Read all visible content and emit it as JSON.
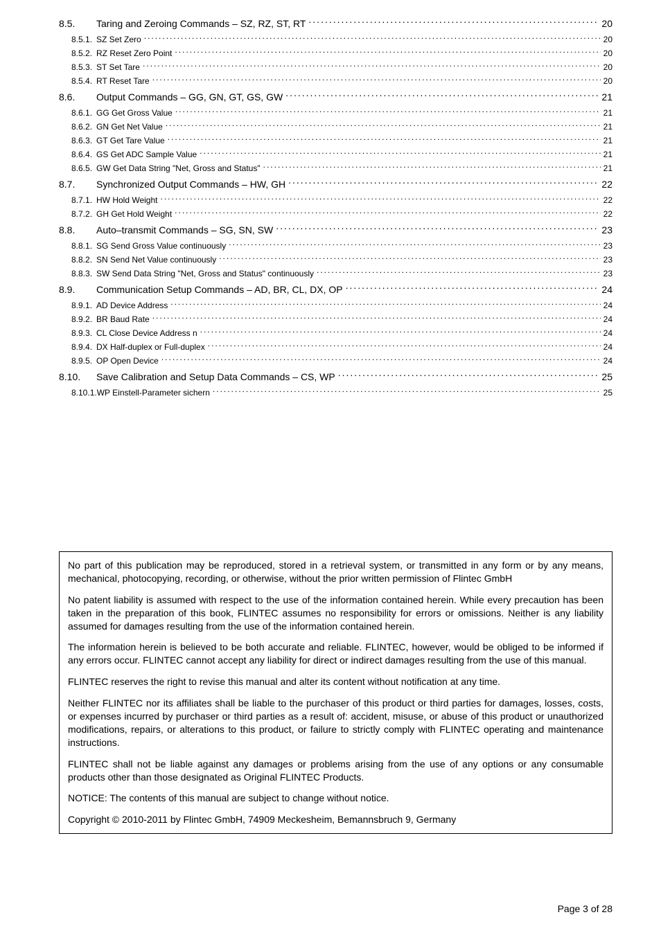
{
  "toc": [
    {
      "level": 1,
      "num": "8.5.",
      "label": "Taring and Zeroing Commands – SZ, RZ, ST, RT",
      "page": "20"
    },
    {
      "level": 2,
      "num": "8.5.1.",
      "label": "SZ  Set Zero",
      "page": "20"
    },
    {
      "level": 2,
      "num": "8.5.2.",
      "label": "RZ  Reset Zero Point",
      "page": "20"
    },
    {
      "level": 2,
      "num": "8.5.3.",
      "label": "ST  Set Tare",
      "page": "20"
    },
    {
      "level": 2,
      "num": "8.5.4.",
      "label": "RT  Reset Tare",
      "page": "20"
    },
    {
      "level": 1,
      "num": "8.6.",
      "label": "Output Commands – GG, GN, GT, GS, GW",
      "page": "21"
    },
    {
      "level": 2,
      "num": "8.6.1.",
      "label": "GG Get Gross Value",
      "page": "21"
    },
    {
      "level": 2,
      "num": "8.6.2.",
      "label": "GN Get Net Value",
      "page": "21"
    },
    {
      "level": 2,
      "num": "8.6.3.",
      "label": "GT  Get Tare Value",
      "page": "21"
    },
    {
      "level": 2,
      "num": "8.6.4.",
      "label": "GS Get ADC Sample Value",
      "page": "21"
    },
    {
      "level": 2,
      "num": "8.6.5.",
      "label": "GW Get Data String \"Net, Gross and Status\"",
      "page": "21"
    },
    {
      "level": 1,
      "num": "8.7.",
      "label": "Synchronized Output Commands – HW, GH",
      "page": "22"
    },
    {
      "level": 2,
      "num": "8.7.1.",
      "label": "HW Hold Weight",
      "page": "22"
    },
    {
      "level": 2,
      "num": "8.7.2.",
      "label": "GH Get Hold Weight",
      "page": "22"
    },
    {
      "level": 1,
      "num": "8.8.",
      "label": "Auto–transmit Commands – SG, SN, SW",
      "page": "23"
    },
    {
      "level": 2,
      "num": "8.8.1.",
      "label": "SG Send Gross Value continuously",
      "page": "23"
    },
    {
      "level": 2,
      "num": "8.8.2.",
      "label": "SN  Send Net Value continuously",
      "page": "23"
    },
    {
      "level": 2,
      "num": "8.8.3.",
      "label": "SW Send Data String \"Net, Gross and Status\" continuously",
      "page": "23"
    },
    {
      "level": 1,
      "num": "8.9.",
      "label": "Communication Setup Commands – AD, BR, CL, DX, OP",
      "page": "24"
    },
    {
      "level": 2,
      "num": "8.9.1.",
      "label": "AD Device Address",
      "page": "24"
    },
    {
      "level": 2,
      "num": "8.9.2.",
      "label": "BR Baud Rate",
      "page": "24"
    },
    {
      "level": 2,
      "num": "8.9.3.",
      "label": "CL  Close Device Address n",
      "page": "24"
    },
    {
      "level": 2,
      "num": "8.9.4.",
      "label": "DX  Half-duplex or Full-duplex",
      "page": "24"
    },
    {
      "level": 2,
      "num": "8.9.5.",
      "label": "OP Open Device",
      "page": "24"
    },
    {
      "level": 1,
      "num": "8.10.",
      "label": "Save Calibration and Setup Data Commands – CS, WP",
      "page": "25"
    },
    {
      "level": 2,
      "num": "8.10.1.",
      "label": "WP Einstell-Parameter sichern",
      "page": "25"
    }
  ],
  "disclaimer": {
    "p1": "No part of this publication may be reproduced, stored in a retrieval system, or transmitted in any form or by any means, mechanical, photocopying, recording, or otherwise, without the prior written permission of Flintec GmbH",
    "p2": "No patent liability is assumed with respect to the use of the information contained herein. While every precaution has been taken in the preparation of this book, FLINTEC assumes no responsibility for errors or omissions. Neither is any liability assumed for damages resulting from the use of the information contained herein.",
    "p3": "The information herein is believed to be both accurate and reliable. FLINTEC, however, would be obliged to be informed if any errors occur. FLINTEC cannot accept any liability for direct or indirect damages resulting from the use of this manual.",
    "p4": "FLINTEC reserves the right to revise this manual and alter its content without notification at any time.",
    "p5": "Neither FLINTEC nor its affiliates shall be liable to the purchaser of this product or third parties for damages, losses, costs, or expenses incurred by purchaser or third parties as a result of: accident, misuse, or abuse of this product or unauthorized modifications, repairs, or alterations to this product, or failure to strictly comply with FLINTEC operating and maintenance instructions.",
    "p6": "FLINTEC shall not be liable against any damages or problems arising from the use of any options or any consumable products other than those designated as Original FLINTEC Products.",
    "p7": "NOTICE: The contents of this manual are subject to change without notice.",
    "p8": "Copyright © 2010-2011 by Flintec GmbH, 74909 Meckesheim, Bemannsbruch 9, Germany"
  },
  "footer": "Page 3 of 28"
}
